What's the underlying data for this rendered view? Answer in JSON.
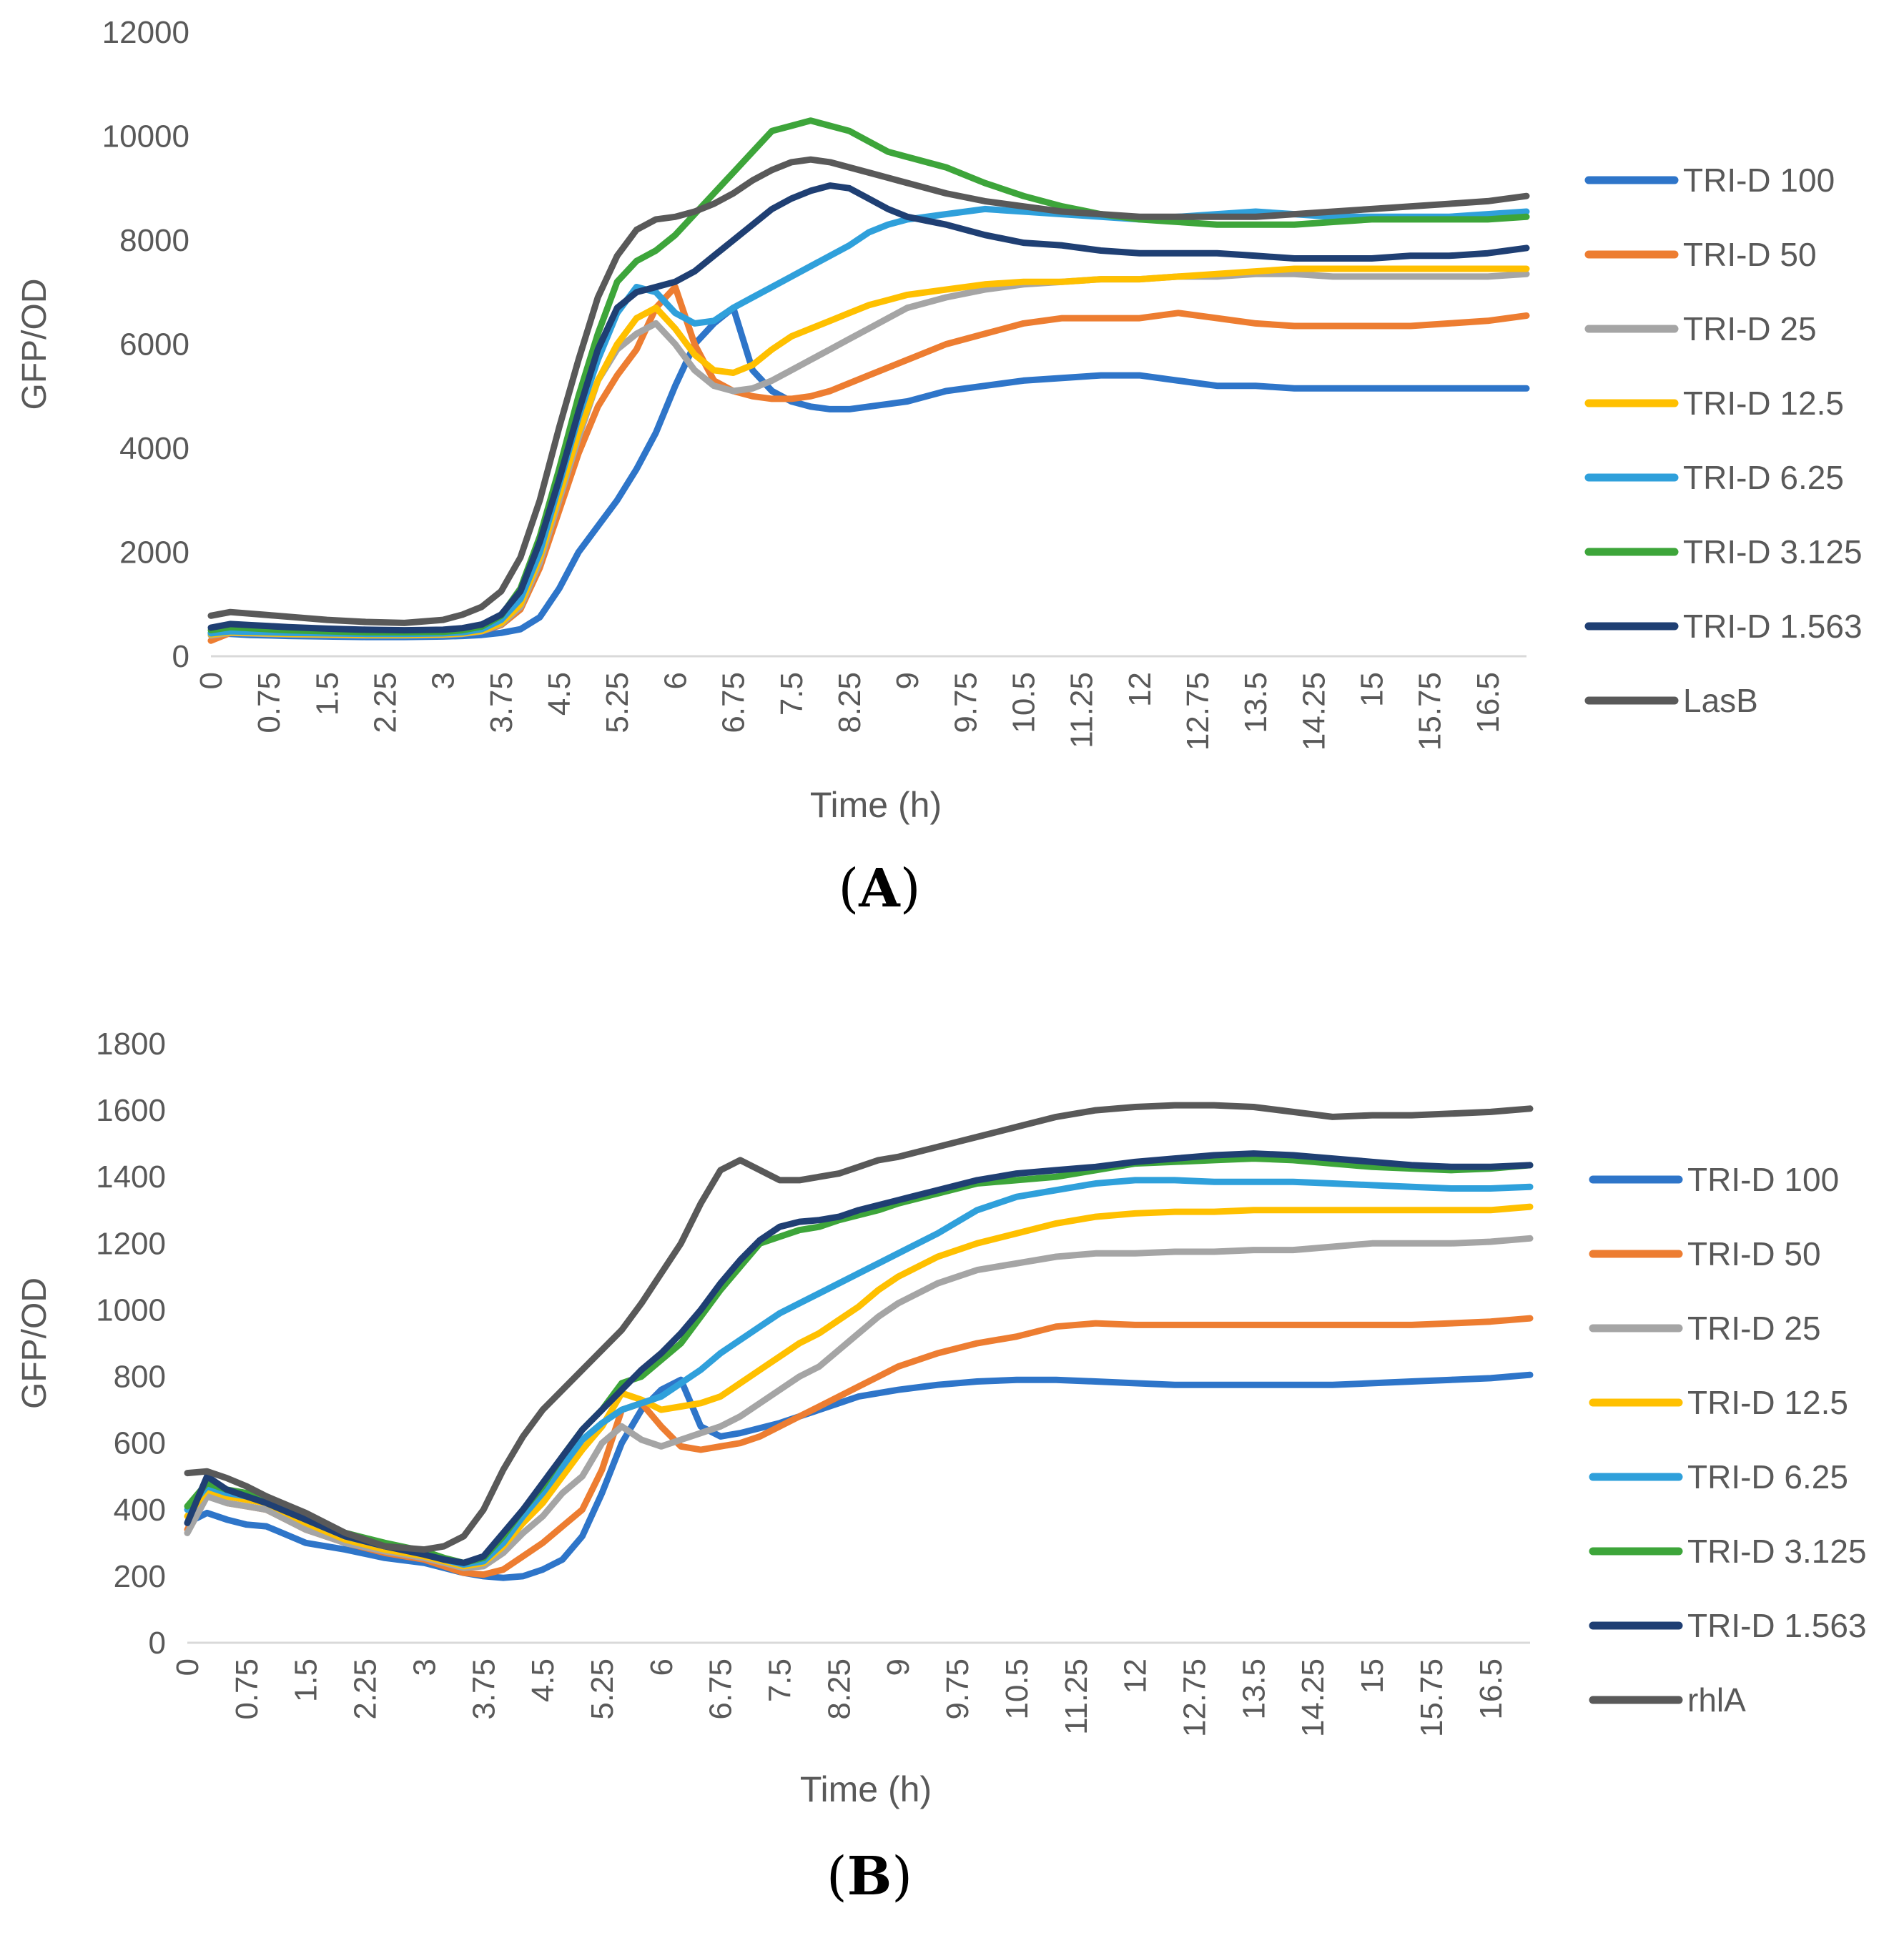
{
  "chart_data": [
    {
      "type": "line",
      "panel_label": "A",
      "xlabel": "Time (h)",
      "ylabel": "GFP/OD",
      "ylim": [
        0,
        12000
      ],
      "yticks": [
        "0",
        "2000",
        "4000",
        "6000",
        "8000",
        "10000",
        "12000"
      ],
      "xlim": [
        0,
        17
      ],
      "xticks": [
        "0",
        "0.75",
        "1.5",
        "2.25",
        "3",
        "3.75",
        "4.5",
        "5.25",
        "6",
        "6.75",
        "7.5",
        "8.25",
        "9",
        "9.75",
        "10.5",
        "11.25",
        "12",
        "12.75",
        "13.5",
        "14.25",
        "15",
        "15.75",
        "16.5"
      ],
      "x": [
        0,
        0.25,
        0.5,
        0.75,
        1,
        1.5,
        2,
        2.5,
        3,
        3.25,
        3.5,
        3.75,
        4,
        4.25,
        4.5,
        4.75,
        5,
        5.25,
        5.5,
        5.75,
        6,
        6.25,
        6.5,
        6.75,
        7,
        7.25,
        7.5,
        7.75,
        8,
        8.25,
        8.5,
        8.75,
        9,
        9.5,
        10,
        10.5,
        11,
        11.5,
        12,
        12.5,
        13,
        13.5,
        14,
        14.5,
        15,
        15.5,
        16,
        16.5,
        17
      ],
      "series": [
        {
          "name": "TRI-D 100",
          "color": "#2E75C9",
          "values": [
            450,
            430,
            410,
            400,
            390,
            380,
            370,
            370,
            380,
            390,
            410,
            450,
            520,
            750,
            1300,
            2000,
            2500,
            3000,
            3600,
            4300,
            5200,
            6000,
            6400,
            6700,
            5500,
            5100,
            4900,
            4800,
            4750,
            4750,
            4800,
            4850,
            4900,
            5100,
            5200,
            5300,
            5350,
            5400,
            5400,
            5300,
            5200,
            5200,
            5150,
            5150,
            5150,
            5150,
            5150,
            5150,
            5150
          ]
        },
        {
          "name": "TRI-D 50",
          "color": "#ED7D31",
          "values": [
            300,
            450,
            450,
            440,
            430,
            420,
            410,
            410,
            420,
            440,
            480,
            600,
            900,
            1700,
            2800,
            3900,
            4800,
            5400,
            5900,
            6700,
            7100,
            6000,
            5300,
            5100,
            5000,
            4950,
            4950,
            5000,
            5100,
            5250,
            5400,
            5550,
            5700,
            6000,
            6200,
            6400,
            6500,
            6500,
            6500,
            6600,
            6500,
            6400,
            6350,
            6350,
            6350,
            6350,
            6400,
            6450,
            6550
          ]
        },
        {
          "name": "TRI-D 25",
          "color": "#A5A5A5",
          "values": [
            400,
            450,
            440,
            430,
            420,
            410,
            400,
            400,
            410,
            430,
            480,
            620,
            950,
            1800,
            3000,
            4200,
            5300,
            5900,
            6200,
            6400,
            6000,
            5500,
            5200,
            5100,
            5150,
            5300,
            5500,
            5700,
            5900,
            6100,
            6300,
            6500,
            6700,
            6900,
            7050,
            7150,
            7200,
            7250,
            7250,
            7300,
            7300,
            7350,
            7350,
            7300,
            7300,
            7300,
            7300,
            7300,
            7350
          ]
        },
        {
          "name": "TRI-D 12.5",
          "color": "#FFC000",
          "values": [
            420,
            460,
            450,
            440,
            430,
            420,
            410,
            410,
            420,
            440,
            490,
            640,
            1000,
            1900,
            3100,
            4300,
            5300,
            6000,
            6500,
            6700,
            6300,
            5800,
            5500,
            5450,
            5600,
            5900,
            6150,
            6300,
            6450,
            6600,
            6750,
            6850,
            6950,
            7050,
            7150,
            7200,
            7200,
            7250,
            7250,
            7300,
            7350,
            7400,
            7450,
            7450,
            7450,
            7450,
            7450,
            7450,
            7450
          ]
        },
        {
          "name": "TRI-D 6.25",
          "color": "#2FA0DB",
          "values": [
            440,
            480,
            470,
            460,
            450,
            440,
            430,
            430,
            440,
            460,
            520,
            700,
            1100,
            2000,
            3300,
            4600,
            5700,
            6600,
            7100,
            7000,
            6600,
            6400,
            6450,
            6700,
            6900,
            7100,
            7300,
            7500,
            7700,
            7900,
            8150,
            8300,
            8400,
            8500,
            8600,
            8550,
            8500,
            8450,
            8400,
            8450,
            8500,
            8550,
            8500,
            8450,
            8450,
            8450,
            8450,
            8500,
            8550
          ]
        },
        {
          "name": "TRI-D 3.125",
          "color": "#3DA53A",
          "values": [
            500,
            560,
            540,
            520,
            500,
            480,
            460,
            460,
            470,
            500,
            570,
            780,
            1300,
            2300,
            3600,
            5000,
            6200,
            7200,
            7600,
            7800,
            8100,
            8500,
            8900,
            9300,
            9700,
            10100,
            10200,
            10300,
            10200,
            10100,
            9900,
            9700,
            9600,
            9400,
            9100,
            8850,
            8650,
            8500,
            8400,
            8350,
            8300,
            8300,
            8300,
            8350,
            8400,
            8400,
            8400,
            8400,
            8450
          ]
        },
        {
          "name": "TRI-D 1.563",
          "color": "#1F3F73",
          "values": [
            550,
            620,
            600,
            580,
            560,
            530,
            510,
            500,
            510,
            540,
            610,
            800,
            1250,
            2200,
            3400,
            4700,
            5900,
            6700,
            7000,
            7100,
            7200,
            7400,
            7700,
            8000,
            8300,
            8600,
            8800,
            8950,
            9050,
            9000,
            8800,
            8600,
            8450,
            8300,
            8100,
            7950,
            7900,
            7800,
            7750,
            7750,
            7750,
            7700,
            7650,
            7650,
            7650,
            7700,
            7700,
            7750,
            7850
          ]
        },
        {
          "name": "LasB",
          "color": "#595959",
          "values": [
            780,
            850,
            820,
            790,
            760,
            700,
            660,
            640,
            700,
            800,
            950,
            1250,
            1900,
            3000,
            4400,
            5700,
            6900,
            7700,
            8200,
            8400,
            8450,
            8550,
            8700,
            8900,
            9150,
            9350,
            9500,
            9550,
            9500,
            9400,
            9300,
            9200,
            9100,
            8900,
            8750,
            8650,
            8550,
            8500,
            8450,
            8450,
            8450,
            8450,
            8500,
            8550,
            8600,
            8650,
            8700,
            8750,
            8850
          ]
        }
      ]
    },
    {
      "type": "line",
      "panel_label": "B",
      "xlabel": "Time (h)",
      "ylabel": "GFP/OD",
      "ylim": [
        0,
        1800
      ],
      "yticks": [
        "0",
        "200",
        "400",
        "600",
        "800",
        "1000",
        "1200",
        "1400",
        "1600",
        "1800"
      ],
      "xlim": [
        0,
        17
      ],
      "xticks": [
        "0",
        "0.75",
        "1.5",
        "2.25",
        "3",
        "3.75",
        "4.5",
        "5.25",
        "6",
        "6.75",
        "7.5",
        "8.25",
        "9",
        "9.75",
        "10.5",
        "11.25",
        "12",
        "12.75",
        "13.5",
        "14.25",
        "15",
        "15.75",
        "16.5"
      ],
      "x": [
        0,
        0.25,
        0.5,
        0.75,
        1,
        1.5,
        2,
        2.5,
        3,
        3.25,
        3.5,
        3.75,
        4,
        4.25,
        4.5,
        4.75,
        5,
        5.25,
        5.5,
        5.75,
        6,
        6.25,
        6.5,
        6.75,
        7,
        7.25,
        7.5,
        7.75,
        8,
        8.25,
        8.5,
        8.75,
        9,
        9.5,
        10,
        10.5,
        11,
        11.5,
        12,
        12.5,
        13,
        13.5,
        14,
        14.5,
        15,
        15.5,
        16,
        16.5,
        17
      ],
      "series": [
        {
          "name": "TRI-D 100",
          "color": "#2E75C9",
          "values": [
            360,
            390,
            370,
            355,
            350,
            300,
            280,
            255,
            240,
            225,
            210,
            200,
            195,
            200,
            220,
            250,
            320,
            450,
            600,
            700,
            760,
            790,
            650,
            620,
            630,
            645,
            660,
            680,
            700,
            720,
            740,
            750,
            760,
            775,
            785,
            790,
            790,
            785,
            780,
            775,
            775,
            775,
            775,
            775,
            780,
            785,
            790,
            795,
            805
          ]
        },
        {
          "name": "TRI-D 50",
          "color": "#ED7D31",
          "values": [
            340,
            450,
            420,
            410,
            400,
            340,
            300,
            270,
            250,
            230,
            210,
            205,
            220,
            260,
            300,
            350,
            400,
            520,
            700,
            720,
            650,
            590,
            580,
            590,
            600,
            620,
            650,
            680,
            710,
            740,
            770,
            800,
            830,
            870,
            900,
            920,
            950,
            960,
            955,
            955,
            955,
            955,
            955,
            955,
            955,
            955,
            960,
            965,
            975
          ]
        },
        {
          "name": "TRI-D 25",
          "color": "#A5A5A5",
          "values": [
            330,
            440,
            420,
            410,
            400,
            340,
            300,
            275,
            255,
            240,
            225,
            230,
            270,
            330,
            380,
            450,
            500,
            600,
            650,
            610,
            590,
            610,
            630,
            650,
            680,
            720,
            760,
            800,
            830,
            880,
            930,
            980,
            1020,
            1080,
            1120,
            1140,
            1160,
            1170,
            1170,
            1175,
            1175,
            1180,
            1180,
            1190,
            1200,
            1200,
            1200,
            1205,
            1215
          ]
        },
        {
          "name": "TRI-D 12.5",
          "color": "#FFC000",
          "values": [
            380,
            460,
            440,
            430,
            420,
            360,
            310,
            280,
            260,
            245,
            230,
            240,
            290,
            360,
            420,
            500,
            580,
            650,
            750,
            730,
            700,
            710,
            720,
            740,
            780,
            820,
            860,
            900,
            930,
            970,
            1010,
            1060,
            1100,
            1160,
            1200,
            1230,
            1260,
            1280,
            1290,
            1295,
            1295,
            1300,
            1300,
            1300,
            1300,
            1300,
            1300,
            1300,
            1310
          ]
        },
        {
          "name": "TRI-D 6.25",
          "color": "#2FA0DB",
          "values": [
            400,
            470,
            450,
            440,
            430,
            370,
            320,
            290,
            270,
            250,
            235,
            245,
            300,
            380,
            450,
            530,
            610,
            660,
            700,
            720,
            740,
            780,
            820,
            870,
            910,
            950,
            990,
            1020,
            1050,
            1080,
            1110,
            1140,
            1170,
            1230,
            1300,
            1340,
            1360,
            1380,
            1390,
            1390,
            1385,
            1385,
            1385,
            1380,
            1375,
            1370,
            1365,
            1365,
            1370
          ]
        },
        {
          "name": "TRI-D 3.125",
          "color": "#3DA53A",
          "values": [
            410,
            480,
            460,
            450,
            440,
            380,
            330,
            300,
            275,
            255,
            240,
            255,
            320,
            400,
            470,
            560,
            640,
            700,
            780,
            800,
            850,
            900,
            980,
            1060,
            1130,
            1200,
            1220,
            1240,
            1250,
            1270,
            1285,
            1300,
            1320,
            1350,
            1380,
            1390,
            1400,
            1420,
            1440,
            1445,
            1450,
            1455,
            1450,
            1440,
            1430,
            1425,
            1420,
            1425,
            1435
          ]
        },
        {
          "name": "TRI-D 1.563",
          "color": "#1F3F73",
          "values": [
            360,
            500,
            460,
            440,
            420,
            370,
            320,
            290,
            265,
            250,
            240,
            260,
            330,
            400,
            480,
            560,
            640,
            700,
            760,
            820,
            870,
            930,
            1000,
            1080,
            1150,
            1210,
            1250,
            1265,
            1270,
            1280,
            1300,
            1315,
            1330,
            1360,
            1390,
            1410,
            1420,
            1430,
            1445,
            1455,
            1465,
            1470,
            1465,
            1455,
            1445,
            1435,
            1430,
            1430,
            1435
          ]
        },
        {
          "name": "rhlA",
          "color": "#595959",
          "values": [
            510,
            515,
            495,
            470,
            440,
            390,
            330,
            290,
            280,
            290,
            320,
            400,
            520,
            620,
            700,
            760,
            820,
            880,
            940,
            1020,
            1110,
            1200,
            1320,
            1420,
            1450,
            1420,
            1390,
            1390,
            1400,
            1410,
            1430,
            1450,
            1460,
            1490,
            1520,
            1550,
            1580,
            1600,
            1610,
            1615,
            1615,
            1610,
            1595,
            1580,
            1585,
            1585,
            1590,
            1595,
            1605
          ]
        }
      ]
    }
  ]
}
